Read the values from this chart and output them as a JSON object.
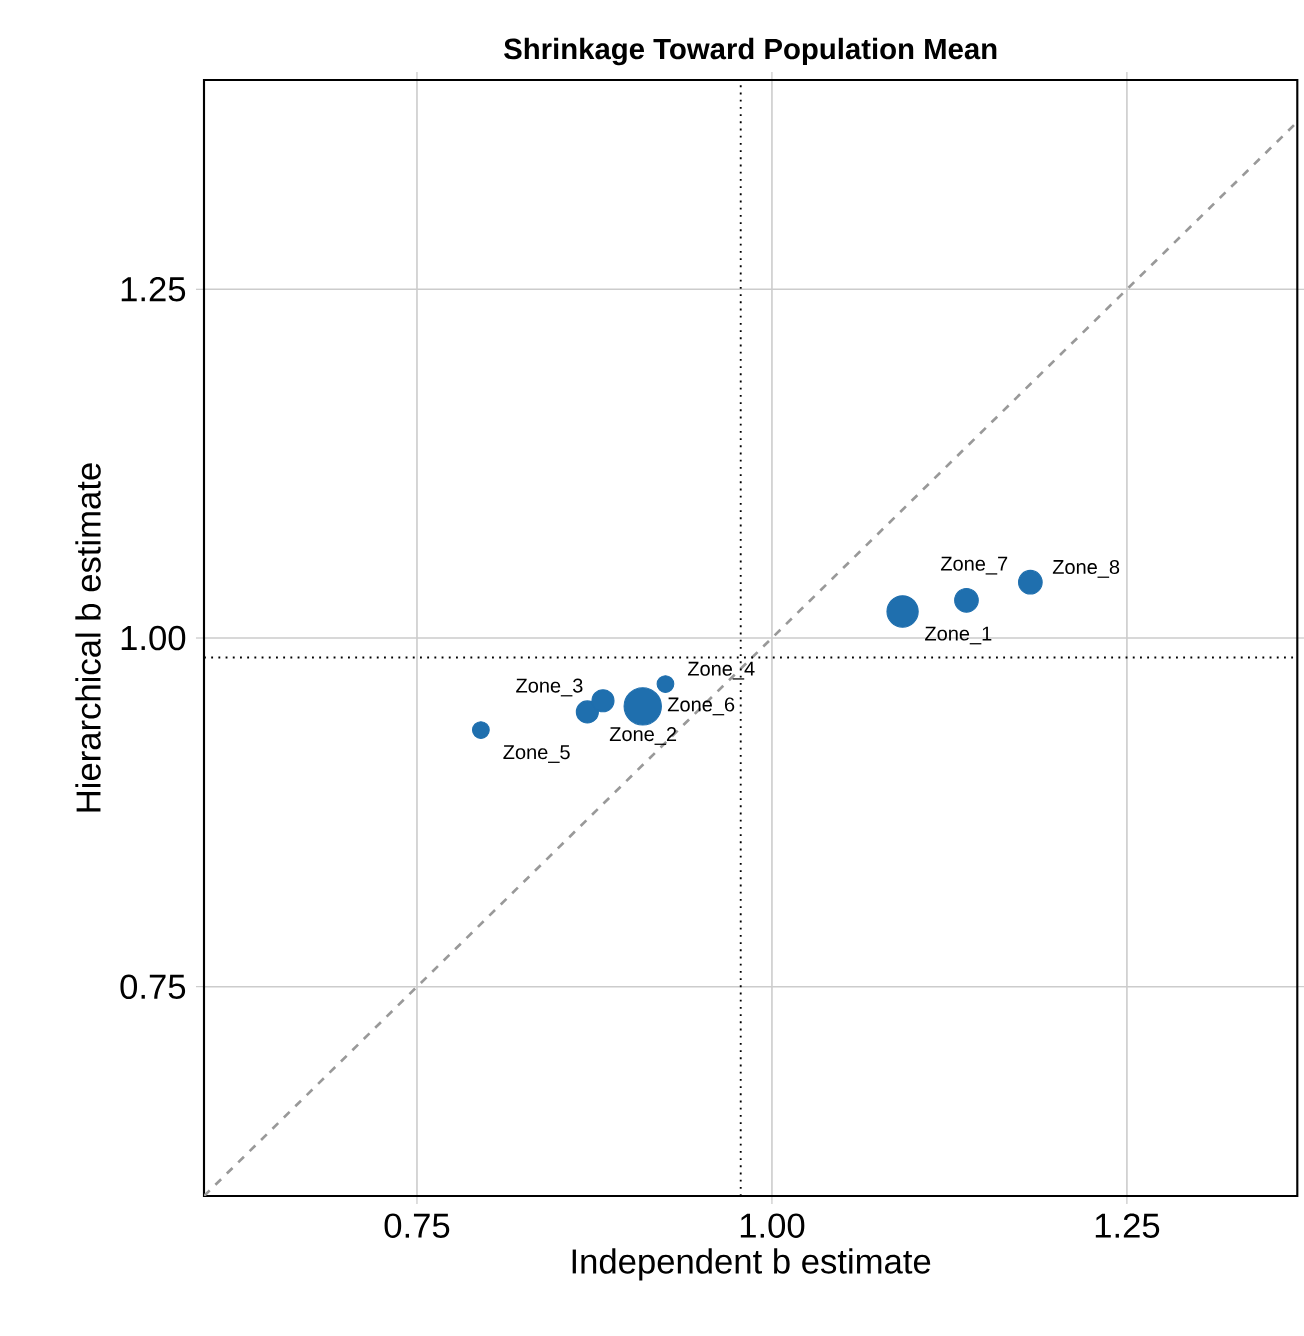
{
  "chart_data": {
    "type": "bubble",
    "title": "Shrinkage Toward Population Mean",
    "xlabel": "Independent b estimate",
    "ylabel": "Hierarchical b estimate",
    "series": [
      {
        "color": "#1f6fae",
        "x": [
          1.092,
          0.87,
          0.881,
          0.925,
          0.795,
          0.909,
          1.137,
          1.182
        ],
        "values": [
          1.019,
          0.947,
          0.955,
          0.967,
          0.934,
          0.951,
          1.027,
          1.04
        ],
        "sizes": [
          0.7,
          0.35,
          0.35,
          0.2,
          0.2,
          1,
          0.4,
          0.4
        ]
      },
      {
        "type": "line",
        "marker": "none",
        "color": "#999999",
        "line_style": "dashed",
        "x": [
          0.6,
          1.37
        ],
        "values": [
          0.6,
          1.37
        ]
      }
    ],
    "annotations": [
      {
        "text": "Zone_1",
        "x": 1.092,
        "y": 1.019
      },
      {
        "text": "Zone_2",
        "x": 0.87,
        "y": 0.947
      },
      {
        "text": "Zone_3",
        "x": 0.881,
        "y": 0.955
      },
      {
        "text": "Zone_4",
        "x": 0.925,
        "y": 0.967
      },
      {
        "text": "Zone_5",
        "x": 0.795,
        "y": 0.934
      },
      {
        "text": "Zone_6",
        "x": 0.909,
        "y": 0.951
      },
      {
        "text": "Zone_7",
        "x": 1.137,
        "y": 1.027
      },
      {
        "text": "Zone_8",
        "x": 1.182,
        "y": 1.04
      }
    ],
    "ref_lines": [
      {
        "axis": "x",
        "value": 0.978,
        "color": "#000000",
        "line_style": "dotted"
      },
      {
        "axis": "y",
        "value": 0.986,
        "color": "#000000",
        "line_style": "dotted"
      }
    ],
    "xlim": [
      0.6,
      1.37
    ],
    "ylim": [
      0.6,
      1.4
    ],
    "xticks": [
      {
        "value": 0.75,
        "label": "0.75"
      },
      {
        "value": 1.0,
        "label": "1.00"
      },
      {
        "value": 1.25,
        "label": "1.25"
      }
    ],
    "yticks": [
      {
        "value": 0.75,
        "label": "0.75"
      },
      {
        "value": 1.0,
        "label": "1.00"
      },
      {
        "value": 1.25,
        "label": "1.25"
      }
    ],
    "grid": true
  }
}
